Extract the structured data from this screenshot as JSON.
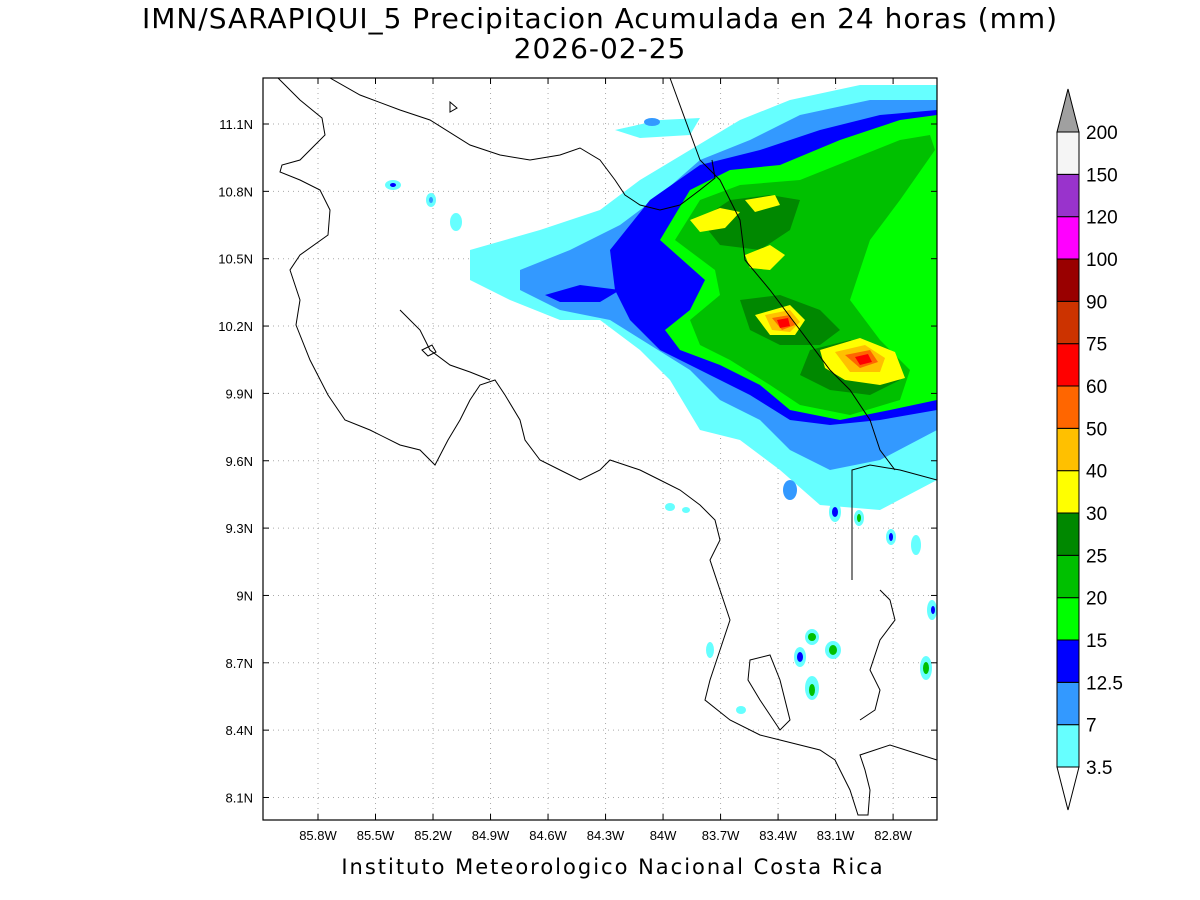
{
  "title": {
    "line1": "IMN/SARAPIQUI_5 Precipitacion Acumulada en 24 horas (mm)",
    "line2": "2026-02-25"
  },
  "footer": "Instituto Meteorologico Nacional Costa Rica",
  "map": {
    "lon_range": [
      -86.0,
      -83.0
    ],
    "lat_range": [
      8.0,
      11.2
    ],
    "lon_ticks": [
      {
        "value": -85.8,
        "label": "85.8W"
      },
      {
        "value": -85.5,
        "label": "85.5W"
      },
      {
        "value": -85.2,
        "label": "85.2W"
      },
      {
        "value": -84.9,
        "label": "84.9W"
      },
      {
        "value": -84.6,
        "label": "84.6W"
      },
      {
        "value": -84.3,
        "label": "84.3W"
      },
      {
        "value": -84.0,
        "label": "84W"
      },
      {
        "value": -83.7,
        "label": "83.7W"
      },
      {
        "value": -83.4,
        "label": "83.4W"
      },
      {
        "value": -83.1,
        "label": "83.1W"
      },
      {
        "value": -82.8,
        "label": "82.8W"
      }
    ],
    "lat_ticks": [
      {
        "value": 11.1,
        "label": "11.1N"
      },
      {
        "value": 10.8,
        "label": "10.8N"
      },
      {
        "value": 10.5,
        "label": "10.5N"
      },
      {
        "value": 10.2,
        "label": "10.2N"
      },
      {
        "value": 9.9,
        "label": "9.9N"
      },
      {
        "value": 9.6,
        "label": "9.6N"
      },
      {
        "value": 9.3,
        "label": "9.3N"
      },
      {
        "value": 9.0,
        "label": "9N"
      },
      {
        "value": 8.7,
        "label": "8.7N"
      },
      {
        "value": 8.4,
        "label": "8.4N"
      },
      {
        "value": 8.1,
        "label": "8.1N"
      }
    ],
    "grid": true,
    "grid_style": "dotted"
  },
  "legend": {
    "position": "right",
    "unit": "mm",
    "over_color": "#a0a0a0",
    "under_color": "#ffffff",
    "bins": [
      {
        "label": "3.5",
        "color": "#66ffff"
      },
      {
        "label": "7",
        "color": "#3399ff"
      },
      {
        "label": "12.5",
        "color": "#0000ff"
      },
      {
        "label": "15",
        "color": "#00ff00"
      },
      {
        "label": "20",
        "color": "#00c000"
      },
      {
        "label": "25",
        "color": "#008800"
      },
      {
        "label": "30",
        "color": "#ffff00"
      },
      {
        "label": "40",
        "color": "#ffc000"
      },
      {
        "label": "50",
        "color": "#ff6600"
      },
      {
        "label": "60",
        "color": "#ff0000"
      },
      {
        "label": "75",
        "color": "#cc3300"
      },
      {
        "label": "90",
        "color": "#990000"
      },
      {
        "label": "100",
        "color": "#ff00ff"
      },
      {
        "label": "120",
        "color": "#9933cc"
      },
      {
        "label": "150",
        "color": "#f5f5f5"
      },
      {
        "label": "200",
        "color": ""
      }
    ]
  }
}
